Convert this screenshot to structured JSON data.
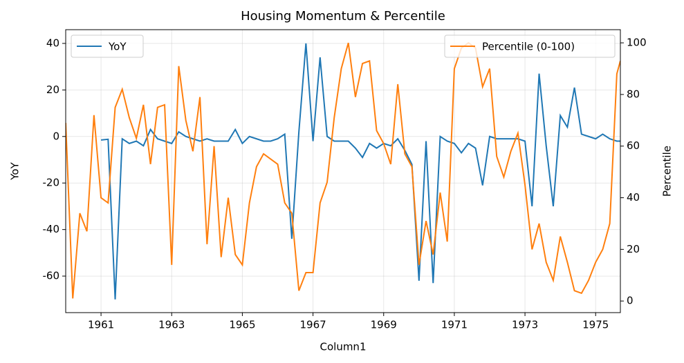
{
  "chart_data": {
    "type": "line",
    "title": "Housing Momentum & Percentile",
    "xlabel": "Column1",
    "ylabel": "YoY",
    "y2label": "Percentile",
    "x": [
      1960,
      1960.2,
      1960.4,
      1960.6,
      1960.8,
      1961,
      1961.2,
      1961.4,
      1961.6,
      1961.8,
      1962,
      1962.2,
      1962.4,
      1962.6,
      1962.8,
      1963,
      1963.2,
      1963.4,
      1963.6,
      1963.8,
      1964,
      1964.2,
      1964.4,
      1964.6,
      1964.8,
      1965,
      1965.2,
      1965.4,
      1965.6,
      1965.8,
      1966,
      1966.2,
      1966.4,
      1966.6,
      1966.8,
      1967,
      1967.2,
      1967.4,
      1967.6,
      1967.8,
      1968,
      1968.2,
      1968.4,
      1968.6,
      1968.8,
      1969,
      1969.2,
      1969.4,
      1969.6,
      1969.8,
      1970,
      1970.2,
      1970.4,
      1970.6,
      1970.8,
      1971,
      1971.2,
      1971.4,
      1971.6,
      1971.8,
      1972,
      1972.2,
      1972.4,
      1972.6,
      1972.8,
      1973,
      1973.2,
      1973.4,
      1973.6,
      1973.8,
      1974,
      1974.2,
      1974.4,
      1974.6,
      1974.8,
      1975,
      1975.2,
      1975.4,
      1975.6,
      1975.7
    ],
    "series": [
      {
        "name": "YoY",
        "color": "#1f77b4",
        "axis": "y",
        "values": [
          null,
          null,
          null,
          null,
          null,
          -1.5,
          -1.2,
          -70,
          -1,
          -3,
          -2,
          -4,
          3,
          -1,
          -2,
          -3,
          2,
          0,
          -1,
          -2,
          -1,
          -2,
          -2,
          -2,
          3,
          -3,
          0,
          -1,
          -2,
          -2,
          -1,
          1,
          -44,
          2,
          40,
          -2,
          34,
          0,
          -2,
          -2,
          -2,
          -5,
          -9,
          -3,
          -5,
          -3,
          -4,
          -1,
          -6,
          -12,
          -62,
          -2,
          -63,
          0,
          -2,
          -3,
          -7,
          -3,
          -5,
          -21,
          0,
          -1,
          -1,
          -1,
          -1,
          -2,
          -30,
          27,
          -4,
          -30,
          9,
          4,
          21,
          1,
          0,
          -1,
          1,
          -1,
          -2,
          -2
        ]
      },
      {
        "name": "Percentile (0-100)",
        "color": "#ff7f0e",
        "axis": "y2",
        "values": [
          69,
          1,
          34,
          27,
          72,
          40,
          38,
          75,
          82,
          71,
          63,
          76,
          53,
          75,
          76,
          14,
          91,
          70,
          58,
          79,
          22,
          60,
          17,
          40,
          18,
          14,
          38,
          52,
          57,
          55,
          53,
          38,
          34,
          4,
          11,
          11,
          38,
          46,
          71,
          90,
          100,
          79,
          92,
          93,
          66,
          61,
          53,
          84,
          57,
          52,
          14,
          31,
          18,
          42,
          23,
          90,
          98,
          100,
          98,
          83,
          90,
          56,
          48,
          58,
          65,
          45,
          20,
          30,
          15,
          8,
          25,
          15,
          4,
          3,
          8,
          15,
          20,
          30,
          88,
          93
        ]
      }
    ],
    "xlim": [
      1960.0,
      1975.7
    ],
    "xticks": [
      1961,
      1963,
      1965,
      1967,
      1969,
      1971,
      1973,
      1975
    ],
    "ylim": [
      -75.7,
      45.9
    ],
    "yticks": [
      -60,
      -40,
      -20,
      0,
      20,
      40
    ],
    "y2lim": [
      -4.5,
      105.1
    ],
    "y2ticks": [
      0,
      20,
      40,
      60,
      80,
      100
    ],
    "grid": true,
    "legend": {
      "y": "upper left",
      "y2": "upper right"
    }
  }
}
